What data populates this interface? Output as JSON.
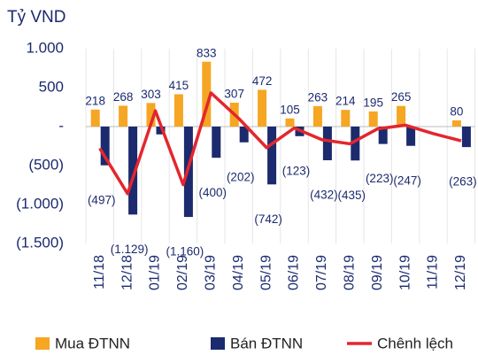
{
  "chart_data": {
    "type": "bar",
    "y_axis_label": "Tỷ VND",
    "categories": [
      "11/18",
      "12/18",
      "01/19",
      "02/19",
      "03/19",
      "04/19",
      "05/19",
      "06/19",
      "07/19",
      "08/19",
      "09/19",
      "10/19",
      "11/19",
      "12/19"
    ],
    "series": [
      {
        "name": "Mua ĐTNN",
        "type": "bar",
        "color": "#f5a623",
        "values": [
          218,
          268,
          303,
          415,
          833,
          307,
          472,
          105,
          263,
          214,
          195,
          265,
          null,
          80
        ]
      },
      {
        "name": "Bán ĐTNN",
        "type": "bar",
        "color": "#1c2a6e",
        "values": [
          -497,
          -1129,
          -100,
          -1160,
          -400,
          -202,
          -742,
          -123,
          -432,
          -435,
          -223,
          -247,
          null,
          -263
        ],
        "value_labels": [
          "(497)",
          "(1.129)",
          null,
          "(1.160)",
          "(400)",
          "(202)",
          "(742)",
          "(123)",
          "(432)",
          "(435)",
          "(223)",
          "(247)",
          null,
          "(263)"
        ]
      },
      {
        "name": "Chênh lệch",
        "type": "line",
        "color": "#e3262d",
        "values": [
          -279,
          -861,
          203,
          -745,
          433,
          105,
          -270,
          -18,
          -169,
          -221,
          -28,
          18,
          -90,
          -183
        ]
      }
    ],
    "ylim": [
      -1500,
      1000
    ],
    "yticks": [
      {
        "value": 1000,
        "label": "1.000"
      },
      500,
      {
        "value": 0,
        "label": "-"
      },
      {
        "value": -500,
        "label": "(500)"
      },
      {
        "value": -1000,
        "label": "(1.000)"
      },
      {
        "value": -1500,
        "label": "(1.500)"
      }
    ]
  }
}
